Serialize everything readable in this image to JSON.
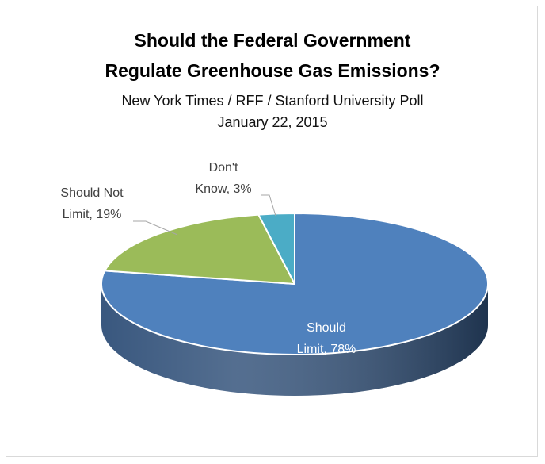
{
  "chart_data": {
    "type": "pie",
    "title_line1": "Should the Federal Government",
    "title_line2": "Regulate Greenhouse Gas Emissions?",
    "subtitle_line1": "New York Times / RFF / Stanford University Poll",
    "subtitle_line2": "January 22, 2015",
    "slices": [
      {
        "label_line1": "Should",
        "label_line2": "Limit, 78%",
        "category": "Should Limit",
        "value": 78,
        "color": "#4f81bd",
        "side_color": "#2f4f78"
      },
      {
        "label_line1": "Should Not",
        "label_line2": "Limit, 19%",
        "category": "Should Not Limit",
        "value": 19,
        "color": "#9bbb59",
        "side_color": "#617a35"
      },
      {
        "label_line1": "Don't",
        "label_line2": "Know, 3%",
        "category": "Don't Know",
        "value": 3,
        "color": "#4bacc6",
        "side_color": "#2c7386"
      }
    ],
    "legend": "none",
    "style": "3d"
  }
}
